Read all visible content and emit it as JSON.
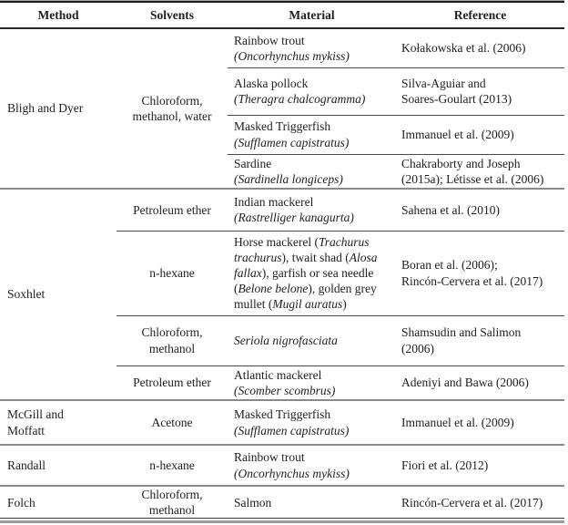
{
  "table": {
    "headers": {
      "method": "Method",
      "solvents": "Solvents",
      "material": "Material",
      "reference": "Reference"
    },
    "rows": [
      {
        "method": "Bligh and Dyer",
        "solvents": "Chloroform,\nmethanol, water",
        "material": [
          {
            "t": "Rainbow trout\n",
            "i": false
          },
          {
            "t": "(Oncorhynchus mykiss)",
            "i": true
          }
        ],
        "reference": "Kołakowska et al. (2006)"
      },
      {
        "material": [
          {
            "t": "Alaska pollock\n",
            "i": false
          },
          {
            "t": "(Theragra chalcogramma)",
            "i": true
          }
        ],
        "reference": "Silva-Aguiar and\nSoares-Goulart (2013)"
      },
      {
        "material": [
          {
            "t": "Masked Triggerfish\n",
            "i": false
          },
          {
            "t": "(Sufflamen capistratus)",
            "i": true
          }
        ],
        "reference": "Immanuel et al. (2009)"
      },
      {
        "material": [
          {
            "t": "Sardine\n",
            "i": false
          },
          {
            "t": "(Sardinella longiceps)",
            "i": true
          }
        ],
        "reference": "Chakraborty and Joseph\n(2015a); Létisse et al. (2006)"
      },
      {
        "method": "Soxhlet",
        "solvents": "Petroleum ether",
        "material": [
          {
            "t": "Indian mackerel\n",
            "i": false
          },
          {
            "t": "(Rastrelliger kanagurta)",
            "i": true
          }
        ],
        "reference": "Sahena et al. (2010)"
      },
      {
        "solvents": "n-hexane",
        "material": [
          {
            "t": "Horse mackerel (",
            "i": false
          },
          {
            "t": "Trachurus trachurus",
            "i": true
          },
          {
            "t": "), twait shad (",
            "i": false
          },
          {
            "t": "Alosa fallax",
            "i": true
          },
          {
            "t": "), garfish or sea needle (",
            "i": false
          },
          {
            "t": "Belone belone",
            "i": true
          },
          {
            "t": "), golden grey mullet (",
            "i": false
          },
          {
            "t": "Mugil auratus",
            "i": true
          },
          {
            "t": ")",
            "i": false
          }
        ],
        "reference": "Boran et al. (2006);\nRincón-Cervera et al. (2017)"
      },
      {
        "solvents": "Chloroform,\nmethanol",
        "material": [
          {
            "t": "Seriola nigrofasciata",
            "i": true
          }
        ],
        "reference": "Shamsudin and Salimon\n(2006)"
      },
      {
        "solvents": "Petroleum ether",
        "material": [
          {
            "t": "Atlantic mackerel\n",
            "i": false
          },
          {
            "t": "(Scomber scombrus)",
            "i": true
          }
        ],
        "reference": "Adeniyi and Bawa (2006)"
      },
      {
        "method": "McGill and\nMoffatt",
        "solvents": "Acetone",
        "material": [
          {
            "t": "Masked Triggerfish\n",
            "i": false
          },
          {
            "t": "(Sufflamen capistratus)",
            "i": true
          }
        ],
        "reference": "Immanuel et al. (2009)"
      },
      {
        "method": "Randall",
        "solvents": "n-hexane",
        "material": [
          {
            "t": "Rainbow trout\n",
            "i": false
          },
          {
            "t": "(Oncorhynchus mykiss)",
            "i": true
          }
        ],
        "reference": "Fiori et al. (2012)"
      },
      {
        "method": "Folch",
        "solvents": "Chloroform,\nmethanol",
        "material": [
          {
            "t": "Salmon",
            "i": false
          }
        ],
        "reference": "Rincón-Cervera et al. (2017)"
      }
    ]
  }
}
